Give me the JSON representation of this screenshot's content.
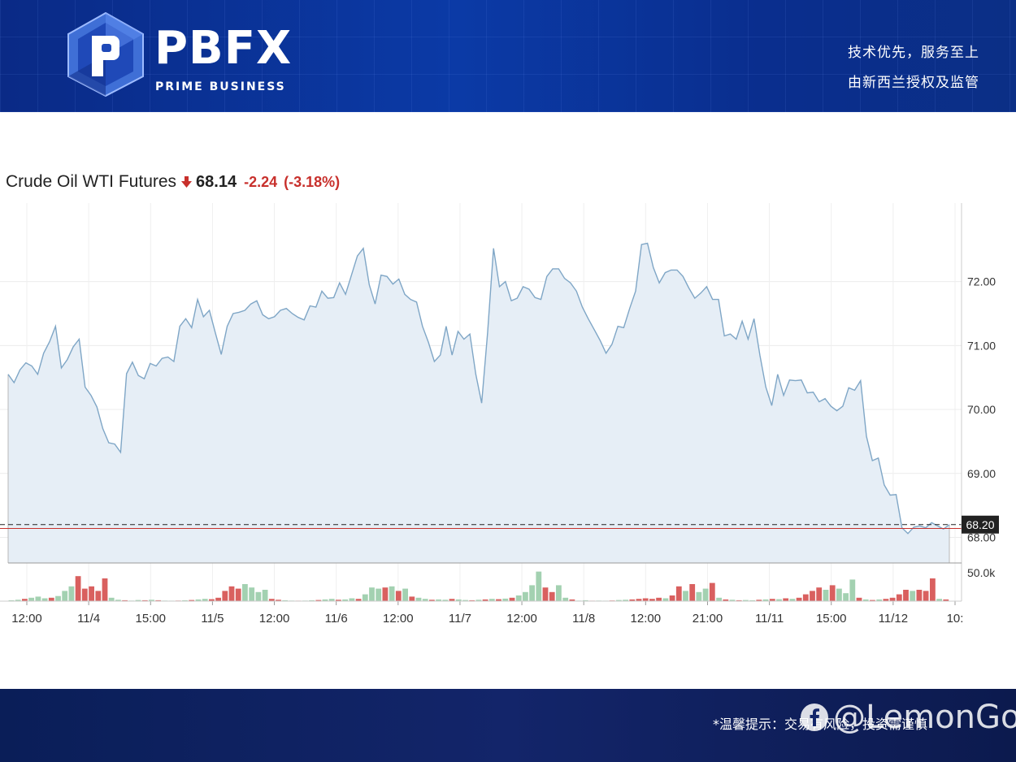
{
  "brand": {
    "name": "PBFX",
    "subtitle": "PRIME BUSINESS",
    "slogan_line1": "技术优先，服务至上",
    "slogan_line2": "由新西兰授权及监管",
    "primary_color": "#0b3aa6"
  },
  "chart_header": {
    "title": "Crude Oil WTI Futures",
    "direction_icon": "down-arrow-icon",
    "price": "68.14",
    "change": "-2.24",
    "change_pct": "(-3.18%)",
    "negative_color": "#c8302c"
  },
  "chart_data": {
    "type": "area",
    "title": "Crude Oil WTI Futures",
    "x_ticks": [
      "12:00",
      "11/4",
      "15:00",
      "11/5",
      "12:00",
      "11/6",
      "12:00",
      "11/7",
      "12:00",
      "11/8",
      "12:00",
      "21:00",
      "11/11",
      "15:00",
      "11/12",
      "10:"
    ],
    "y_ticks": [
      "72.00",
      "71.00",
      "70.00",
      "69.00",
      "68.00"
    ],
    "ylim": [
      67.6,
      73.1
    ],
    "grid": true,
    "line_color": "#7fa6c6",
    "fill_color": "#e6eef6",
    "last_price_label": "68.20",
    "last_price": 68.2,
    "reference_price": 68.14,
    "values": [
      70.55,
      70.42,
      70.62,
      70.73,
      70.68,
      70.55,
      70.88,
      71.06,
      71.3,
      70.65,
      70.78,
      70.98,
      71.1,
      70.35,
      70.22,
      70.04,
      69.7,
      69.48,
      69.46,
      69.33,
      70.56,
      70.74,
      70.53,
      70.48,
      70.72,
      70.68,
      70.8,
      70.82,
      70.75,
      71.3,
      71.42,
      71.28,
      71.72,
      71.45,
      71.55,
      71.2,
      70.86,
      71.3,
      71.5,
      71.52,
      71.55,
      71.65,
      71.7,
      71.48,
      71.42,
      71.45,
      71.55,
      71.58,
      71.5,
      71.44,
      71.4,
      71.62,
      71.6,
      71.85,
      71.74,
      71.75,
      71.98,
      71.8,
      72.1,
      72.4,
      72.52,
      71.95,
      71.65,
      72.1,
      72.08,
      71.96,
      72.04,
      71.8,
      71.72,
      71.68,
      71.3,
      71.05,
      70.75,
      70.85,
      71.3,
      70.85,
      71.22,
      71.1,
      71.18,
      70.55,
      70.1,
      71.2,
      72.52,
      71.92,
      72.0,
      71.7,
      71.74,
      71.92,
      71.88,
      71.75,
      71.72,
      72.08,
      72.2,
      72.2,
      72.05,
      71.98,
      71.85,
      71.6,
      71.42,
      71.25,
      71.08,
      70.88,
      71.02,
      71.3,
      71.28,
      71.58,
      71.85,
      72.58,
      72.6,
      72.22,
      71.98,
      72.14,
      72.18,
      72.18,
      72.08,
      71.9,
      71.74,
      71.82,
      71.92,
      71.72,
      71.72,
      71.15,
      71.18,
      71.1,
      71.38,
      71.1,
      71.42,
      70.85,
      70.35,
      70.06,
      70.55,
      70.22,
      70.46,
      70.45,
      70.46,
      70.26,
      70.27,
      70.12,
      70.17,
      70.05,
      69.98,
      70.05,
      70.34,
      70.3,
      70.45,
      69.58,
      69.2,
      69.24,
      68.82,
      68.66,
      68.67,
      68.15,
      68.06,
      68.16,
      68.18,
      68.15,
      68.23,
      68.18,
      68.13,
      68.2
    ],
    "volume": {
      "label": "50.0k",
      "max": 60000,
      "up_color": "#a3d1b1",
      "down_color": "#d9605f",
      "bars": [
        {
          "v": 1500,
          "up": true
        },
        {
          "v": 2500,
          "up": true
        },
        {
          "v": 4000,
          "up": false
        },
        {
          "v": 6000,
          "up": true
        },
        {
          "v": 8000,
          "up": true
        },
        {
          "v": 5000,
          "up": true
        },
        {
          "v": 6000,
          "up": false
        },
        {
          "v": 9000,
          "up": true
        },
        {
          "v": 18000,
          "up": true
        },
        {
          "v": 26000,
          "up": true
        },
        {
          "v": 44000,
          "up": false
        },
        {
          "v": 22000,
          "up": false
        },
        {
          "v": 26000,
          "up": false
        },
        {
          "v": 18000,
          "up": false
        },
        {
          "v": 40000,
          "up": false
        },
        {
          "v": 6000,
          "up": true
        },
        {
          "v": 2500,
          "up": true
        },
        {
          "v": 1500,
          "up": false
        },
        {
          "v": 1000,
          "up": true
        },
        {
          "v": 2000,
          "up": true
        },
        {
          "v": 1500,
          "up": false
        },
        {
          "v": 2500,
          "up": true
        },
        {
          "v": 1500,
          "up": false
        },
        {
          "v": 1000,
          "up": true
        },
        {
          "v": 800,
          "up": true
        },
        {
          "v": 1000,
          "up": false
        },
        {
          "v": 1500,
          "up": true
        },
        {
          "v": 2000,
          "up": false
        },
        {
          "v": 3000,
          "up": true
        },
        {
          "v": 4000,
          "up": true
        },
        {
          "v": 3500,
          "up": false
        },
        {
          "v": 6000,
          "up": false
        },
        {
          "v": 18000,
          "up": false
        },
        {
          "v": 26000,
          "up": false
        },
        {
          "v": 22000,
          "up": false
        },
        {
          "v": 30000,
          "up": true
        },
        {
          "v": 24000,
          "up": true
        },
        {
          "v": 16000,
          "up": true
        },
        {
          "v": 20000,
          "up": true
        },
        {
          "v": 4000,
          "up": false
        },
        {
          "v": 2500,
          "up": false
        },
        {
          "v": 1500,
          "up": true
        },
        {
          "v": 1000,
          "up": true
        },
        {
          "v": 800,
          "up": false
        },
        {
          "v": 1000,
          "up": true
        },
        {
          "v": 1500,
          "up": true
        },
        {
          "v": 2000,
          "up": false
        },
        {
          "v": 3000,
          "up": true
        },
        {
          "v": 4000,
          "up": true
        },
        {
          "v": 2500,
          "up": false
        },
        {
          "v": 3000,
          "up": true
        },
        {
          "v": 5000,
          "up": true
        },
        {
          "v": 4000,
          "up": false
        },
        {
          "v": 12000,
          "up": true
        },
        {
          "v": 24000,
          "up": true
        },
        {
          "v": 22000,
          "up": true
        },
        {
          "v": 24000,
          "up": false
        },
        {
          "v": 26000,
          "up": true
        },
        {
          "v": 18000,
          "up": false
        },
        {
          "v": 22000,
          "up": true
        },
        {
          "v": 8000,
          "up": false
        },
        {
          "v": 6000,
          "up": true
        },
        {
          "v": 4000,
          "up": true
        },
        {
          "v": 2500,
          "up": false
        },
        {
          "v": 3000,
          "up": true
        },
        {
          "v": 2500,
          "up": true
        },
        {
          "v": 4000,
          "up": false
        },
        {
          "v": 3000,
          "up": true
        },
        {
          "v": 2000,
          "up": true
        },
        {
          "v": 1500,
          "up": false
        },
        {
          "v": 2500,
          "up": true
        },
        {
          "v": 3000,
          "up": false
        },
        {
          "v": 4000,
          "up": true
        },
        {
          "v": 3500,
          "up": false
        },
        {
          "v": 4500,
          "up": true
        },
        {
          "v": 6000,
          "up": false
        },
        {
          "v": 10000,
          "up": true
        },
        {
          "v": 16000,
          "up": true
        },
        {
          "v": 28000,
          "up": true
        },
        {
          "v": 52000,
          "up": true
        },
        {
          "v": 24000,
          "up": false
        },
        {
          "v": 16000,
          "up": false
        },
        {
          "v": 28000,
          "up": true
        },
        {
          "v": 6000,
          "up": true
        },
        {
          "v": 3000,
          "up": false
        },
        {
          "v": 1000,
          "up": true
        },
        {
          "v": 1500,
          "up": true
        },
        {
          "v": 800,
          "up": false
        },
        {
          "v": 1000,
          "up": true
        },
        {
          "v": 800,
          "up": true
        },
        {
          "v": 1200,
          "up": false
        },
        {
          "v": 2000,
          "up": true
        },
        {
          "v": 2500,
          "up": true
        },
        {
          "v": 3000,
          "up": false
        },
        {
          "v": 4000,
          "up": false
        },
        {
          "v": 5000,
          "up": false
        },
        {
          "v": 4000,
          "up": false
        },
        {
          "v": 6000,
          "up": false
        },
        {
          "v": 5000,
          "up": true
        },
        {
          "v": 10000,
          "up": false
        },
        {
          "v": 26000,
          "up": false
        },
        {
          "v": 18000,
          "up": true
        },
        {
          "v": 30000,
          "up": false
        },
        {
          "v": 16000,
          "up": true
        },
        {
          "v": 22000,
          "up": true
        },
        {
          "v": 32000,
          "up": false
        },
        {
          "v": 6000,
          "up": true
        },
        {
          "v": 3000,
          "up": false
        },
        {
          "v": 2500,
          "up": true
        },
        {
          "v": 1500,
          "up": false
        },
        {
          "v": 2000,
          "up": true
        },
        {
          "v": 1500,
          "up": true
        },
        {
          "v": 2500,
          "up": false
        },
        {
          "v": 3000,
          "up": true
        },
        {
          "v": 4000,
          "up": false
        },
        {
          "v": 3500,
          "up": true
        },
        {
          "v": 5000,
          "up": false
        },
        {
          "v": 4000,
          "up": true
        },
        {
          "v": 6000,
          "up": false
        },
        {
          "v": 12000,
          "up": false
        },
        {
          "v": 18000,
          "up": false
        },
        {
          "v": 24000,
          "up": false
        },
        {
          "v": 20000,
          "up": true
        },
        {
          "v": 28000,
          "up": false
        },
        {
          "v": 22000,
          "up": true
        },
        {
          "v": 14000,
          "up": true
        },
        {
          "v": 38000,
          "up": true
        },
        {
          "v": 6000,
          "up": false
        },
        {
          "v": 3000,
          "up": true
        },
        {
          "v": 2000,
          "up": false
        },
        {
          "v": 3000,
          "up": true
        },
        {
          "v": 4000,
          "up": false
        },
        {
          "v": 6000,
          "up": false
        },
        {
          "v": 12000,
          "up": false
        },
        {
          "v": 20000,
          "up": false
        },
        {
          "v": 18000,
          "up": true
        },
        {
          "v": 20000,
          "up": false
        },
        {
          "v": 18000,
          "up": false
        },
        {
          "v": 40000,
          "up": false
        },
        {
          "v": 4000,
          "up": true
        },
        {
          "v": 3000,
          "up": false
        }
      ]
    }
  },
  "footer": {
    "disclaimer": "*温馨提示：交易有风险，投资需谨慎",
    "watermark": "@LemonGold",
    "watermark_icon": "facebook-icon"
  }
}
